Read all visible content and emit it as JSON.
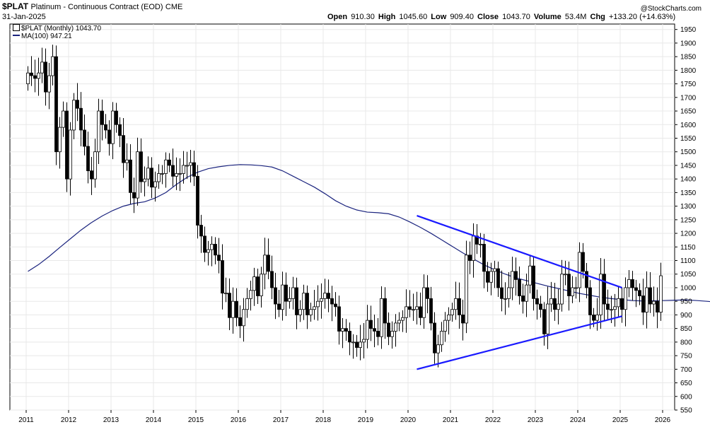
{
  "header": {
    "symbol": "$PLAT",
    "name": "Platinum - Continuous Contract (EOD)",
    "exchange": "CME",
    "date": "31-Jan-2025",
    "watermark": "@StockCharts.com",
    "quote": {
      "open_label": "Open",
      "open": "910.30",
      "high_label": "High",
      "high": "1045.60",
      "low_label": "Low",
      "low": "909.40",
      "close_label": "Close",
      "close": "1043.70",
      "volume_label": "Volume",
      "volume": "53.4M",
      "chg_label": "Chg",
      "chg": "+133.20 (+14.63%)"
    }
  },
  "legend": {
    "price": "$PLAT (Monthly) 1043.70",
    "ma": "MA(100) 947.21"
  },
  "colors": {
    "up": "#000000",
    "down": "#000000",
    "ma_line": "#1a237e",
    "trendline": "#1a1aff",
    "grid": "#e8e8e8"
  },
  "chart_data": {
    "type": "candlestick",
    "interval": "Monthly",
    "y_axis_side": "right",
    "ylim": [
      550,
      1970
    ],
    "y_ticks": [
      550,
      600,
      650,
      700,
      750,
      800,
      850,
      900,
      950,
      1000,
      1050,
      1100,
      1150,
      1200,
      1250,
      1300,
      1350,
      1400,
      1450,
      1500,
      1550,
      1600,
      1650,
      1700,
      1750,
      1800,
      1850,
      1900,
      1950
    ],
    "x_ticks": [
      "2011",
      "2012",
      "2013",
      "2014",
      "2015",
      "2016",
      "2017",
      "2018",
      "2019",
      "2020",
      "2021",
      "2022",
      "2023",
      "2024",
      "2025",
      "2026"
    ],
    "start_month": "2011-01",
    "closes": [
      1790,
      1780,
      1770,
      1790,
      1830,
      1720,
      1780,
      1850,
      1500,
      1590,
      1650,
      1400,
      1580,
      1690,
      1660,
      1580,
      1520,
      1430,
      1400,
      1500,
      1650,
      1600,
      1580,
      1530,
      1650,
      1600,
      1560,
      1460,
      1470,
      1350,
      1330,
      1500,
      1390,
      1400,
      1440,
      1370,
      1390,
      1420,
      1420,
      1470,
      1450,
      1410,
      1420,
      1420,
      1450,
      1450,
      1460,
      1410,
      1230,
      1190,
      1130,
      1140,
      1160,
      1120,
      1100,
      980,
      980,
      890,
      950,
      890,
      860,
      920,
      960,
      990,
      1040,
      970,
      1050,
      1120,
      1060,
      1000,
      940,
      920,
      1010,
      950,
      960,
      1000,
      900,
      920,
      980,
      900,
      920,
      930,
      950,
      960,
      980,
      960,
      940,
      930,
      840,
      850,
      840,
      800,
      800,
      780,
      800,
      810,
      880,
      850,
      840,
      820,
      960,
      870,
      820,
      840,
      870,
      880,
      890,
      930,
      920,
      920,
      930,
      890,
      1000,
      960,
      870,
      760,
      790,
      840,
      880,
      900,
      920,
      960,
      900,
      870,
      1120,
      1100,
      1190,
      1160,
      1160,
      1060,
      1020,
      1060,
      1070,
      1000,
      960,
      960,
      1000,
      1060,
      1030,
      970,
      950,
      1010,
      1080,
      960,
      940,
      920,
      830,
      940,
      960,
      920,
      940,
      1050,
      1050,
      970,
      1000,
      1000,
      1130,
      1060,
      1000,
      900,
      880,
      900,
      1050,
      940,
      920,
      920,
      930,
      960,
      920,
      1000,
      1030,
      1000,
      990,
      970,
      910,
      1000,
      940,
      950,
      910,
      1044
    ],
    "ma_period": 100,
    "ma_values": [
      1060,
      1085,
      1115,
      1148,
      1180,
      1212,
      1240,
      1264,
      1284,
      1300,
      1310,
      1316,
      1330,
      1350,
      1380,
      1406,
      1425,
      1438,
      1445,
      1450,
      1453,
      1452,
      1449,
      1444,
      1430,
      1410,
      1390,
      1370,
      1346,
      1320,
      1300,
      1286,
      1278,
      1276,
      1272,
      1260,
      1242,
      1222,
      1200,
      1176,
      1152,
      1128,
      1106,
      1084,
      1066,
      1050,
      1036,
      1026,
      1016,
      1006,
      997,
      988,
      979,
      972,
      965,
      960,
      956,
      953,
      951,
      952,
      953,
      954,
      955,
      953,
      950,
      947,
      947
    ],
    "ma_step_months": 3,
    "ma_start_month": "2011-01",
    "trendlines": [
      {
        "name": "upper-resistance",
        "from": [
          "2020-03",
          1265
        ],
        "to": [
          "2025-01",
          1000
        ]
      },
      {
        "name": "lower-support",
        "from": [
          "2020-03",
          700
        ],
        "to": [
          "2025-01",
          895
        ]
      }
    ]
  }
}
